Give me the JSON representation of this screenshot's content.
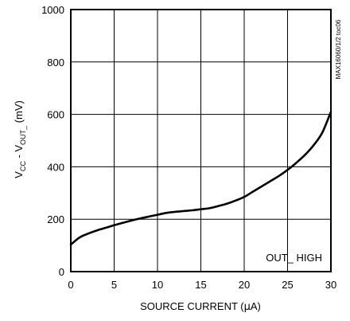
{
  "chart_data": {
    "type": "line",
    "xlabel_parts": [
      "SOURCE CURRENT (",
      "μ",
      "A)"
    ],
    "ylabel_parts": {
      "v": "V",
      "cc": "CC",
      "mid": " - V",
      "out": "OUT_",
      "end": " (mV)"
    },
    "xlim": [
      0,
      30
    ],
    "ylim": [
      0,
      1000
    ],
    "xticks": [
      0,
      5,
      10,
      15,
      20,
      25,
      30
    ],
    "yticks": [
      0,
      200,
      400,
      600,
      800,
      1000
    ],
    "grid": true,
    "annotation": "OUT_  HIGH",
    "side_label": "MAX16060/1/2 toc06",
    "series": [
      {
        "x": [
          0,
          1,
          2,
          3,
          4,
          5,
          6,
          7,
          8,
          9,
          10,
          11,
          12,
          13,
          14,
          15,
          16,
          17,
          18,
          19,
          20,
          21,
          22,
          23,
          24,
          25,
          26,
          27,
          28,
          29,
          30
        ],
        "y": [
          103,
          130,
          145,
          157,
          167,
          177,
          186,
          195,
          203,
          210,
          217,
          224,
          228,
          231,
          234,
          238,
          242,
          250,
          259,
          271,
          285,
          305,
          325,
          345,
          365,
          388,
          415,
          445,
          482,
          530,
          610
        ]
      }
    ]
  }
}
